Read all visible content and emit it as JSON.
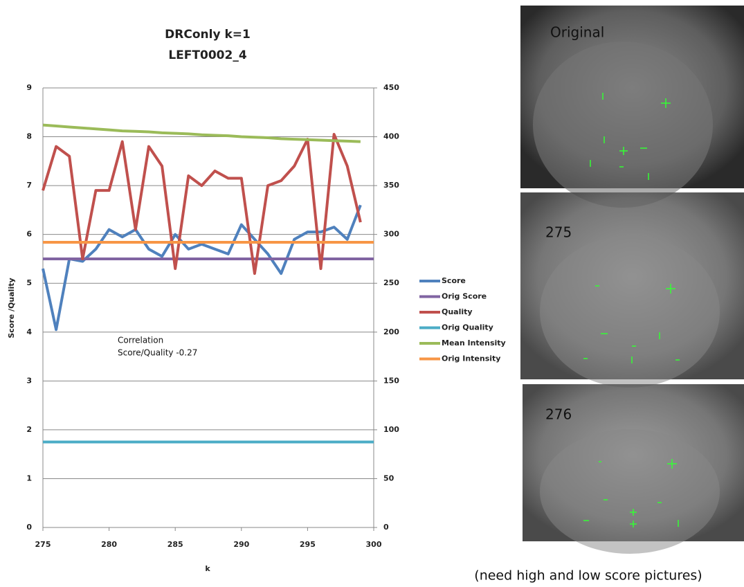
{
  "chart_data": {
    "type": "line",
    "title": [
      "DRConly k=1",
      "LEFT0002_4"
    ],
    "xlabel": "k",
    "ylabel": "Score /Quality",
    "annotation": [
      "Correlation",
      "Score/Quality  -0.27"
    ],
    "x": [
      275,
      276,
      277,
      278,
      279,
      280,
      281,
      282,
      283,
      284,
      285,
      286,
      287,
      288,
      289,
      290,
      291,
      292,
      293,
      294,
      295,
      296,
      297,
      298,
      299,
      300
    ],
    "xlim": [
      275,
      300
    ],
    "xticks": [
      275,
      280,
      285,
      290,
      295,
      300
    ],
    "ylim": [
      0,
      9
    ],
    "yticks": [
      0,
      1,
      2,
      3,
      4,
      5,
      6,
      7,
      8,
      9
    ],
    "y2lim": [
      0,
      450
    ],
    "y2ticks": [
      0,
      50,
      100,
      150,
      200,
      250,
      300,
      350,
      400,
      450
    ],
    "grid": true,
    "legend": "right",
    "series": [
      {
        "name": "Score",
        "color": "#4f81bd",
        "values": [
          5.3,
          4.05,
          5.5,
          5.45,
          5.7,
          6.1,
          5.95,
          6.1,
          5.7,
          5.55,
          6.0,
          5.7,
          5.8,
          5.7,
          5.6,
          6.2,
          5.9,
          5.6,
          5.2,
          5.9,
          6.05,
          6.05,
          6.15,
          5.9,
          6.6,
          null
        ]
      },
      {
        "name": "Orig Score",
        "color": "#8064a2",
        "values": [
          5.5,
          5.5,
          5.5,
          5.5,
          5.5,
          5.5,
          5.5,
          5.5,
          5.5,
          5.5,
          5.5,
          5.5,
          5.5,
          5.5,
          5.5,
          5.5,
          5.5,
          5.5,
          5.5,
          5.5,
          5.5,
          5.5,
          5.5,
          5.5,
          5.5,
          5.5
        ]
      },
      {
        "name": "Quality",
        "color": "#c0504d",
        "values": [
          6.9,
          7.8,
          7.6,
          5.5,
          6.9,
          6.9,
          7.9,
          6.1,
          7.8,
          7.4,
          5.3,
          7.2,
          7.0,
          7.3,
          7.15,
          7.15,
          5.2,
          7.0,
          7.1,
          7.4,
          7.95,
          5.3,
          8.05,
          7.4,
          6.25,
          null
        ]
      },
      {
        "name": "Orig Quality",
        "color": "#4bacc6",
        "values": [
          1.75,
          1.75,
          1.75,
          1.75,
          1.75,
          1.75,
          1.75,
          1.75,
          1.75,
          1.75,
          1.75,
          1.75,
          1.75,
          1.75,
          1.75,
          1.75,
          1.75,
          1.75,
          1.75,
          1.75,
          1.75,
          1.75,
          1.75,
          1.75,
          1.75,
          1.75
        ]
      },
      {
        "name": "Mean Intensity",
        "color": "#9bbb59",
        "axis": "y2",
        "values": [
          412,
          411,
          410,
          409,
          408,
          407,
          406,
          405.5,
          405,
          404,
          403.5,
          403,
          402,
          401.5,
          401,
          400,
          399.5,
          399,
          398,
          397.5,
          397,
          396.5,
          396,
          395.5,
          395,
          null
        ]
      },
      {
        "name": "Orig Intensity",
        "color": "#f79646",
        "axis": "y2",
        "values": [
          292,
          292,
          292,
          292,
          292,
          292,
          292,
          292,
          292,
          292,
          292,
          292,
          292,
          292,
          292,
          292,
          292,
          292,
          292,
          292,
          292,
          292,
          292,
          292,
          292,
          292
        ]
      }
    ]
  },
  "images": [
    {
      "label": "Original"
    },
    {
      "label": "275"
    },
    {
      "label": "276"
    }
  ],
  "caption": "(need high and low score pictures)"
}
